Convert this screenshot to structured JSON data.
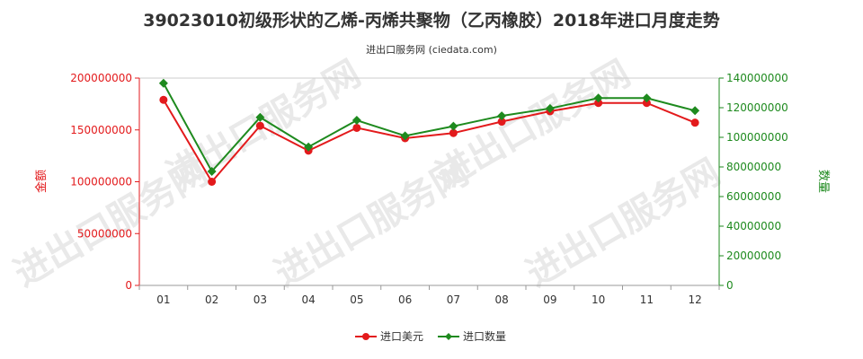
{
  "title": "39023010初级形状的乙烯-丙烯共聚物（乙丙橡胶）2018年进口月度走势",
  "subtitle": "进出口服务网 (ciedata.com)",
  "watermark": "进出口服务网",
  "colors": {
    "usd": "#e31a1c",
    "qty": "#1e8a1e",
    "axis_left": "#e31a1c",
    "axis_right": "#1e8a1e"
  },
  "chart_data": {
    "type": "line",
    "categories": [
      "01",
      "02",
      "03",
      "04",
      "05",
      "06",
      "07",
      "08",
      "09",
      "10",
      "11",
      "12"
    ],
    "left_axis": {
      "label": "金额",
      "ylim": [
        0,
        200000000
      ],
      "ticks": [
        0,
        50000000,
        100000000,
        150000000,
        200000000
      ],
      "tick_labels": [
        "0",
        "50000000",
        "100000000",
        "150000000",
        "200000000"
      ]
    },
    "right_axis": {
      "label": "数量",
      "ylim": [
        0,
        140000000
      ],
      "ticks": [
        0,
        20000000,
        40000000,
        60000000,
        80000000,
        100000000,
        120000000,
        140000000
      ],
      "tick_labels": [
        "0",
        "20000000",
        "40000000",
        "60000000",
        "80000000",
        "100000000",
        "120000000",
        "140000000"
      ]
    },
    "series": [
      {
        "name": "进口美元",
        "axis": "left",
        "color": "#e31a1c",
        "marker": "circle",
        "values": [
          179000000,
          100000000,
          154000000,
          130000000,
          152000000,
          142000000,
          147000000,
          158000000,
          168000000,
          176000000,
          176000000,
          157000000
        ]
      },
      {
        "name": "进口数量",
        "axis": "right",
        "color": "#1e8a1e",
        "marker": "diamond",
        "values": [
          136500000,
          77000000,
          113500000,
          93500000,
          111500000,
          101000000,
          107500000,
          114500000,
          119500000,
          126500000,
          126500000,
          118000000
        ]
      }
    ],
    "legend_position": "bottom"
  }
}
